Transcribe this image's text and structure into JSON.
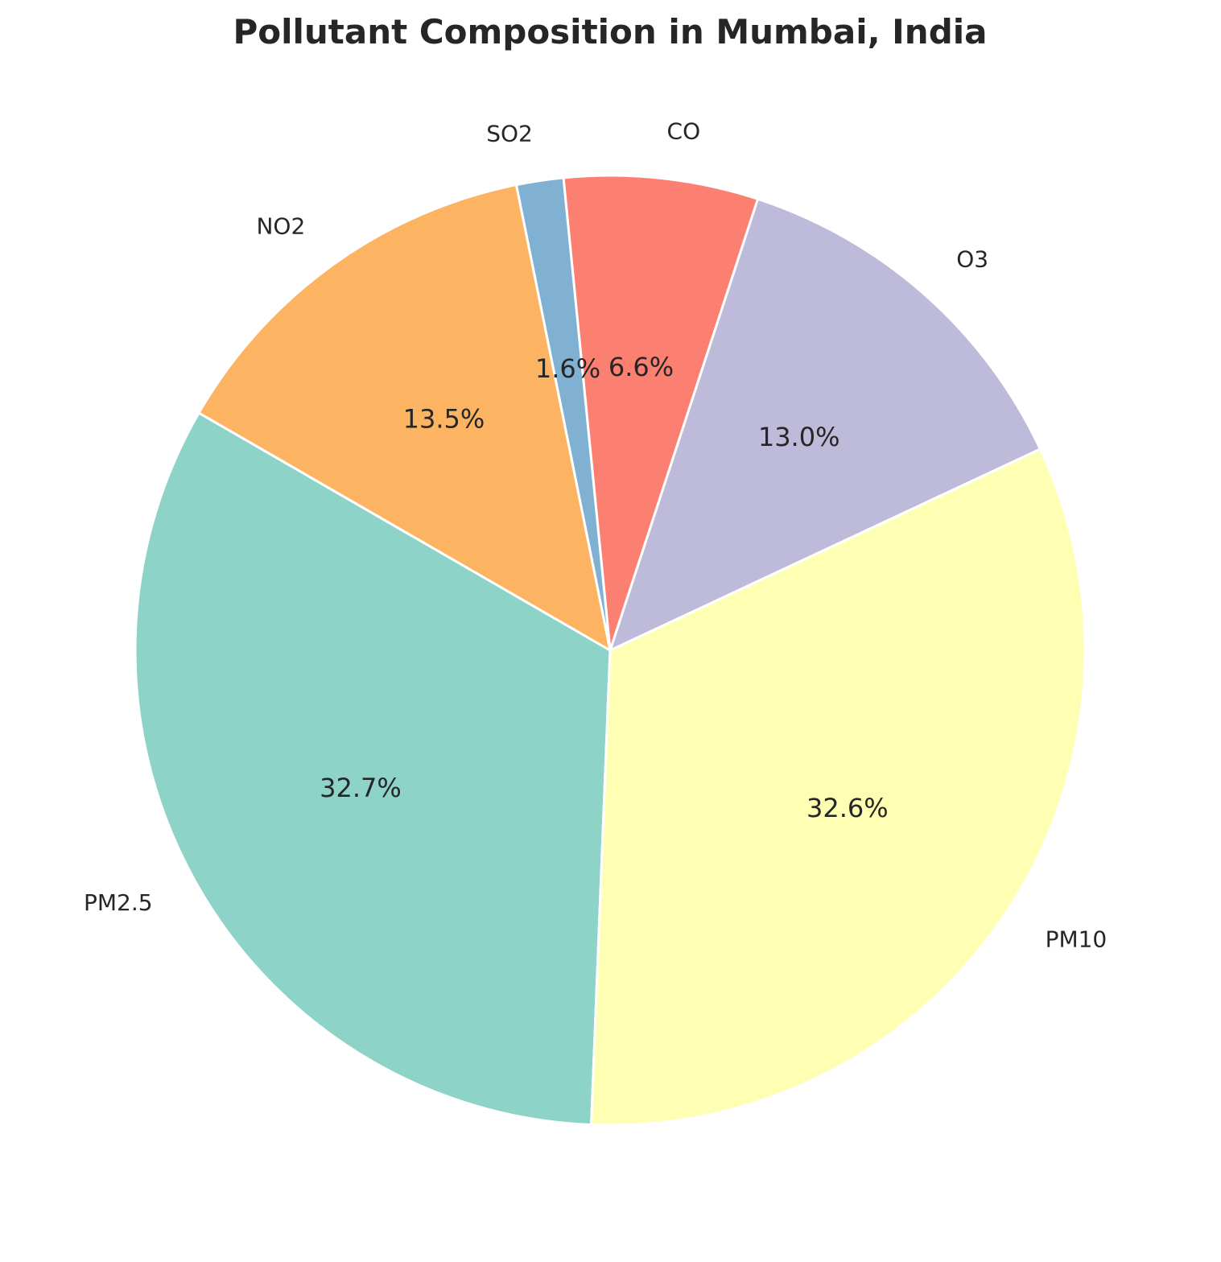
{
  "chart_data": {
    "type": "pie",
    "title": "Pollutant Composition in Mumbai, India",
    "start_angle_deg": 150,
    "direction": "counterclockwise",
    "slices": [
      {
        "label": "PM2.5",
        "value": 32.7,
        "pct_label": "32.7%",
        "color": "#8dd3c7"
      },
      {
        "label": "PM10",
        "value": 32.6,
        "pct_label": "32.6%",
        "color": "#ffffb3"
      },
      {
        "label": "O3",
        "value": 13.0,
        "pct_label": "13.0%",
        "color": "#bebada"
      },
      {
        "label": "CO",
        "value": 6.6,
        "pct_label": "6.6%",
        "color": "#fb8072"
      },
      {
        "label": "SO2",
        "value": 1.6,
        "pct_label": "1.6%",
        "color": "#80b1d3"
      },
      {
        "label": "NO2",
        "value": 13.5,
        "pct_label": "13.5%",
        "color": "#fdb462"
      }
    ]
  }
}
